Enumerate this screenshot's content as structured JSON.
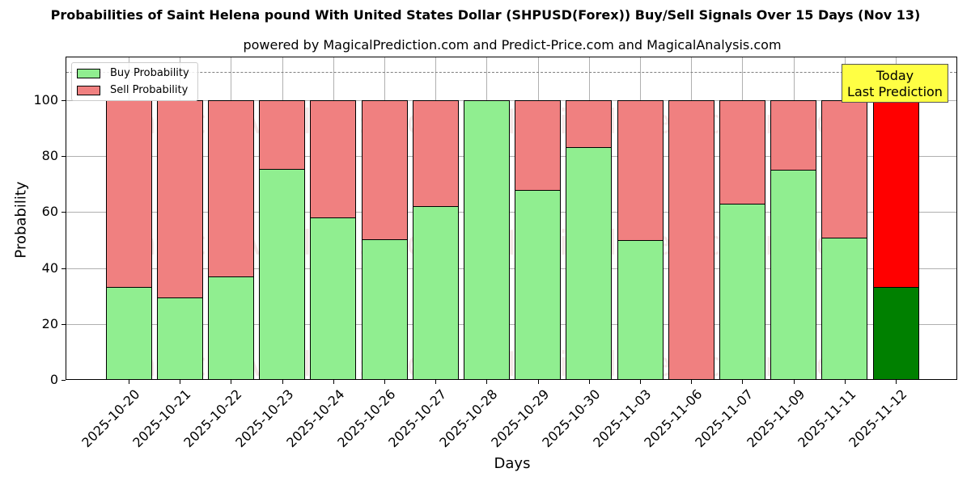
{
  "chart_data": {
    "type": "bar",
    "stacked": true,
    "title": "Probabilities of Saint Helena pound With United States Dollar (SHPUSD(Forex)) Buy/Sell Signals Over 15 Days (Nov 13)",
    "subtitle": "powered by MagicalPrediction.com and Predict-Price.com and MagicalAnalysis.com",
    "xlabel": "Days",
    "ylabel": "Probability",
    "ylim": [
      0,
      115
    ],
    "yticks": [
      0,
      20,
      40,
      60,
      80,
      100
    ],
    "grid": true,
    "legend_position": "upper left",
    "reference_line": {
      "y": 110,
      "style": "dashed",
      "color": "#808080"
    },
    "categories": [
      "2025-10-20",
      "2025-10-21",
      "2025-10-22",
      "2025-10-23",
      "2025-10-24",
      "2025-10-26",
      "2025-10-27",
      "2025-10-28",
      "2025-10-29",
      "2025-10-30",
      "2025-11-03",
      "2025-11-06",
      "2025-11-07",
      "2025-11-09",
      "2025-11-11",
      "2025-11-12"
    ],
    "series": [
      {
        "name": "Buy Probability",
        "color": "#90ee90",
        "values": [
          33.2,
          29.5,
          37.0,
          75.4,
          58.0,
          50.3,
          62.0,
          100.0,
          68.0,
          83.2,
          50.0,
          0.0,
          63.0,
          75.1,
          50.9,
          33.3
        ]
      },
      {
        "name": "Sell Probability",
        "color": "#f08080",
        "values": [
          66.8,
          70.5,
          63.0,
          24.6,
          42.0,
          49.7,
          38.0,
          0.0,
          32.0,
          16.8,
          50.0,
          100.0,
          37.0,
          24.9,
          49.1,
          66.7
        ]
      }
    ],
    "highlight": {
      "index": 15,
      "buy_color": "#008000",
      "sell_color": "#ff0000"
    },
    "annotation": {
      "line1": "Today",
      "line2": "Last Prediction",
      "background": "#ffff44"
    },
    "watermarks": [
      "MagicalAnalysis.com",
      "MagicalPrediction.com"
    ]
  },
  "legend": {
    "buy_label": "Buy Probability",
    "sell_label": "Sell Probability"
  }
}
